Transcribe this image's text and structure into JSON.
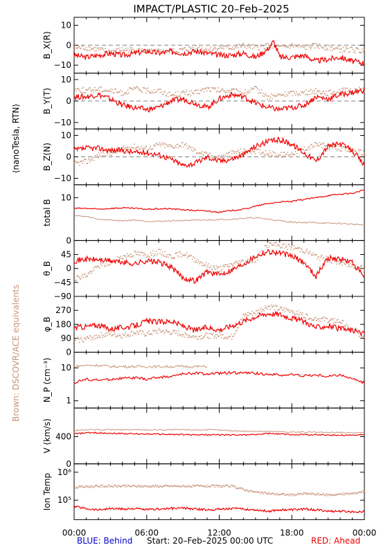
{
  "title": "IMPACT/PLASTIC   20–Feb–2025",
  "units_label": "⟨nanoTesla, RTN⟩",
  "brown_label": "Brown: DSCOVR/ACE equivalents",
  "footer": {
    "blue": "BLUE: Behind",
    "start": "Start: 20–Feb–2025 00:00 UTC",
    "red": "RED: Ahead"
  },
  "colors": {
    "ahead": "#ee0000",
    "dscovr": "#c8957a",
    "behind": "#0000cc",
    "axis": "#000000",
    "dash": "#808080"
  },
  "x_axis": {
    "ticks": [
      "00:00",
      "06:00",
      "12:00",
      "18:00",
      "00:00"
    ],
    "range_hours": [
      0,
      24
    ]
  },
  "chart_data": [
    {
      "type": "scatter",
      "ylabel": "B_X(R)",
      "ylim": [
        -14,
        14
      ],
      "yticks": [
        "10",
        "0",
        "−10"
      ],
      "zero_line": true,
      "series": [
        {
          "name": "RED: Ahead",
          "x": [
            0,
            1,
            2,
            3,
            4,
            5,
            6,
            7,
            8,
            9,
            10,
            11,
            12,
            13,
            14,
            15,
            16,
            16.5,
            17,
            18,
            19,
            20,
            21,
            22,
            23,
            24
          ],
          "values": [
            -5,
            -6,
            -5,
            -4,
            -5,
            -4,
            -3,
            -4,
            -3,
            -4,
            -3,
            -4,
            -5,
            -5,
            -4,
            -6,
            -2,
            2,
            -6,
            -6,
            -5,
            -8,
            -7,
            -6,
            -8,
            -9
          ]
        },
        {
          "values": [
            -1,
            -1,
            -2,
            -3,
            -2,
            -2,
            -3,
            -3,
            -3,
            -2,
            -1,
            -2,
            -1,
            -1,
            0,
            -1,
            0,
            -1,
            -1,
            0,
            -1,
            0,
            -1,
            -2,
            -2,
            -3
          ],
          "x": [
            0,
            1,
            2,
            3,
            4,
            5,
            6,
            7,
            8,
            9,
            10,
            11,
            12,
            13,
            14,
            15,
            16,
            16.5,
            17,
            18,
            19,
            20,
            21,
            22,
            23,
            24
          ]
        }
      ]
    },
    {
      "type": "scatter",
      "ylabel": "B_Y(T)",
      "ylim": [
        -13,
        13
      ],
      "yticks": [
        "10",
        "0",
        "−10"
      ],
      "zero_line": true,
      "series": [
        {
          "name": "RED: Ahead",
          "x": [
            0,
            1,
            2,
            3,
            4,
            5,
            6,
            7,
            8,
            9,
            10,
            11,
            12,
            13,
            14,
            15,
            16,
            17,
            18,
            19,
            20,
            21,
            22,
            23,
            24
          ],
          "values": [
            2,
            2,
            3,
            1,
            -2,
            -3,
            -4,
            -3,
            0,
            1,
            -1,
            -3,
            1,
            3,
            2,
            -1,
            -3,
            -4,
            -3,
            -2,
            2,
            1,
            3,
            4,
            5
          ]
        },
        {
          "x": [
            0,
            1,
            2,
            3,
            4,
            5,
            6,
            7,
            8,
            9,
            10,
            11,
            12,
            13,
            14,
            15,
            16,
            17,
            18,
            19,
            20,
            21,
            22,
            23,
            24
          ],
          "values": [
            6,
            5,
            6,
            5,
            4,
            6,
            5,
            5,
            3,
            4,
            4,
            6,
            5,
            5,
            4,
            6,
            2,
            3,
            4,
            4,
            5,
            4,
            5,
            5,
            6
          ]
        }
      ]
    },
    {
      "type": "scatter",
      "ylabel": "B_Z(N)",
      "ylim": [
        -13,
        13
      ],
      "yticks": [
        "10",
        "0",
        "−10"
      ],
      "zero_line": true,
      "series": [
        {
          "name": "RED: Ahead",
          "x": [
            0,
            1,
            2,
            3,
            4,
            5,
            6,
            7,
            8,
            9,
            10,
            11,
            12,
            13,
            14,
            15,
            16,
            17,
            18,
            19,
            20,
            21,
            22,
            23,
            24
          ],
          "values": [
            3,
            4,
            4,
            3,
            3,
            2,
            2,
            1,
            -1,
            -4,
            -3,
            0,
            -2,
            -1,
            1,
            5,
            7,
            8,
            6,
            2,
            -2,
            5,
            6,
            3,
            -4
          ]
        },
        {
          "x": [
            0,
            1,
            2,
            3,
            4,
            5,
            6,
            7,
            8,
            9,
            10,
            11,
            12,
            13,
            14,
            15,
            16,
            17,
            18,
            19,
            20,
            21,
            22,
            23,
            24
          ],
          "values": [
            -3,
            -2,
            1,
            2,
            4,
            5,
            4,
            6,
            5,
            6,
            3,
            1,
            0,
            2,
            3,
            3,
            2,
            1,
            2,
            4,
            6,
            5,
            4,
            3,
            2
          ]
        }
      ]
    },
    {
      "type": "line",
      "ylabel": "total B",
      "ylim": [
        0,
        13
      ],
      "yticks": [
        "10",
        "0"
      ],
      "series": [
        {
          "name": "RED: Ahead",
          "x": [
            0,
            1,
            2,
            3,
            4,
            5,
            6,
            7,
            8,
            9,
            10,
            11,
            12,
            13,
            14,
            15,
            16,
            17,
            18,
            19,
            20,
            21,
            22,
            23,
            24
          ],
          "values": [
            7.5,
            7.5,
            7.3,
            7.5,
            7.6,
            7.5,
            7.3,
            7.4,
            7.4,
            7.2,
            7.0,
            6.9,
            6.6,
            7.0,
            7.3,
            8.0,
            8.6,
            9.0,
            9.1,
            9.6,
            10.0,
            10.5,
            10.8,
            11.0,
            11.8
          ]
        },
        {
          "x": [
            0,
            1,
            2,
            3,
            4,
            5,
            6,
            7,
            8,
            9,
            10,
            11,
            12,
            13,
            14,
            15,
            16,
            17,
            18,
            19,
            20,
            21,
            22,
            23,
            24
          ],
          "values": [
            5.8,
            5.6,
            5.0,
            4.8,
            4.6,
            4.8,
            4.5,
            4.5,
            4.6,
            4.7,
            4.7,
            4.8,
            4.9,
            5.0,
            5.2,
            5.3,
            5.0,
            4.6,
            4.3,
            4.2,
            4.2,
            4.0,
            4.0,
            3.8,
            3.7
          ]
        }
      ]
    },
    {
      "type": "scatter",
      "ylabel": "θ_B",
      "ylim": [
        -90,
        90
      ],
      "yticks": [
        "45",
        "0",
        "−45",
        "−90"
      ],
      "series": [
        {
          "name": "RED: Ahead",
          "x": [
            0,
            1,
            2,
            3,
            4,
            5,
            6,
            7,
            8,
            9,
            10,
            11,
            12,
            13,
            14,
            15,
            16,
            17,
            18,
            19,
            20,
            21,
            22,
            23,
            24
          ],
          "values": [
            25,
            30,
            28,
            25,
            20,
            15,
            25,
            20,
            5,
            -30,
            -40,
            -10,
            -20,
            -5,
            15,
            40,
            55,
            50,
            40,
            20,
            -25,
            35,
            30,
            20,
            -30
          ]
        },
        {
          "x": [
            0,
            1,
            2,
            3,
            4,
            5,
            6,
            7,
            8,
            9,
            10,
            11,
            12,
            13,
            14,
            15,
            16,
            17,
            18,
            19,
            20,
            21,
            22,
            23,
            24
          ],
          "values": [
            -30,
            -20,
            10,
            20,
            40,
            50,
            45,
            55,
            40,
            50,
            30,
            10,
            0,
            15,
            25,
            30,
            80,
            75,
            70,
            60,
            40,
            30,
            20,
            10,
            5
          ]
        }
      ]
    },
    {
      "type": "scatter",
      "ylabel": "φ_B",
      "ylim": [
        0,
        360
      ],
      "yticks": [
        "270",
        "180",
        "90",
        "0"
      ],
      "series": [
        {
          "name": "RED: Ahead",
          "x": [
            0,
            1,
            2,
            3,
            4,
            5,
            6,
            7,
            8,
            9,
            10,
            11,
            12,
            13,
            14,
            15,
            16,
            17,
            18,
            19,
            20,
            21,
            22,
            23,
            24
          ],
          "values": [
            160,
            165,
            175,
            150,
            160,
            170,
            200,
            195,
            200,
            170,
            140,
            160,
            145,
            170,
            200,
            230,
            250,
            245,
            220,
            200,
            160,
            170,
            150,
            140,
            120
          ]
        },
        {
          "x": [
            0,
            1,
            2,
            3,
            4,
            5,
            6,
            7,
            8,
            9,
            10,
            11,
            12,
            13,
            14,
            15,
            16,
            17,
            18,
            19,
            20,
            21,
            22,
            23,
            24
          ],
          "values": [
            80,
            90,
            110,
            120,
            110,
            130,
            120,
            140,
            130,
            120,
            100,
            110,
            110,
            100,
            240,
            260,
            300,
            280,
            270,
            240,
            220,
            210,
            200,
            140,
            100
          ]
        }
      ]
    },
    {
      "type": "line",
      "ylabel": "N_P (cm⁻³)",
      "yscale": "log",
      "ylim": [
        0.6,
        30
      ],
      "yticks": [
        "10",
        "1"
      ],
      "series": [
        {
          "name": "RED: Ahead",
          "x": [
            0,
            1,
            2,
            3,
            4,
            5,
            6,
            7,
            8,
            9,
            10,
            11,
            12,
            13,
            14,
            15,
            16,
            17,
            18,
            19,
            20,
            21,
            22,
            23,
            24
          ],
          "values": [
            3.5,
            4.5,
            4.2,
            4.5,
            4.8,
            5.0,
            4.5,
            5.2,
            5.5,
            6.5,
            7.0,
            6.5,
            6.8,
            7.2,
            7.0,
            6.8,
            6.5,
            6.0,
            6.2,
            5.8,
            6.0,
            5.5,
            6.2,
            4.5,
            3.5
          ]
        },
        {
          "x": [
            0,
            1,
            2,
            3,
            4,
            5,
            6,
            7,
            8,
            9,
            10,
            11
          ],
          "values": [
            11,
            12,
            12,
            11,
            11,
            11,
            11,
            11,
            11,
            11,
            11,
            11
          ]
        }
      ]
    },
    {
      "type": "line",
      "ylabel": "V (km/s)",
      "ylim": [
        0,
        820
      ],
      "yticks": [
        "400",
        "0"
      ],
      "series": [
        {
          "name": "RED: Ahead",
          "x": [
            0,
            1,
            2,
            3,
            4,
            5,
            6,
            7,
            8,
            9,
            10,
            11,
            12,
            13,
            14,
            15,
            16,
            17,
            18,
            19,
            20,
            21,
            22,
            23,
            24
          ],
          "values": [
            440,
            455,
            455,
            450,
            445,
            440,
            440,
            435,
            432,
            430,
            428,
            428,
            425,
            425,
            425,
            430,
            445,
            438,
            430,
            430,
            425,
            425,
            420,
            420,
            428
          ]
        },
        {
          "x": [
            0,
            1,
            2,
            3,
            4,
            5,
            6,
            7,
            8,
            9,
            10,
            11,
            12,
            13,
            14,
            15,
            16,
            17,
            18,
            19,
            20,
            21,
            22,
            23,
            24
          ],
          "values": [
            490,
            500,
            500,
            500,
            500,
            500,
            500,
            500,
            500,
            500,
            500,
            500,
            495,
            488,
            480,
            478,
            476,
            472,
            468,
            465,
            462,
            460,
            460,
            458,
            456
          ]
        }
      ]
    },
    {
      "type": "scatter",
      "ylabel": "Ion Temp",
      "yscale": "log",
      "ylim": [
        20000,
        2000000
      ],
      "yticks": [
        "10⁶",
        "10⁵"
      ],
      "series": [
        {
          "name": "RED: Ahead",
          "x": [
            0,
            1,
            2,
            3,
            4,
            5,
            6,
            7,
            8,
            9,
            10,
            11,
            12,
            13,
            14,
            15,
            16,
            17,
            18,
            19,
            20,
            21,
            22,
            23,
            24
          ],
          "values": [
            60000,
            50000,
            45000,
            50000,
            48000,
            50000,
            45000,
            48000,
            50000,
            52000,
            48000,
            45000,
            48000,
            50000,
            48000,
            45000,
            40000,
            45000,
            45000,
            48000,
            45000,
            40000,
            40000,
            38000,
            40000
          ]
        },
        {
          "x": [
            0,
            1,
            2,
            3,
            4,
            5,
            6,
            7,
            8,
            9,
            10,
            11,
            12,
            13,
            14,
            15,
            16,
            17,
            18,
            19,
            20,
            21,
            22,
            23,
            24
          ],
          "values": [
            300000,
            320000,
            330000,
            330000,
            330000,
            330000,
            330000,
            330000,
            330000,
            330000,
            330000,
            330000,
            330000,
            330000,
            250000,
            200000,
            180000,
            170000,
            160000,
            180000,
            170000,
            160000,
            170000,
            180000,
            220000
          ]
        }
      ]
    }
  ]
}
